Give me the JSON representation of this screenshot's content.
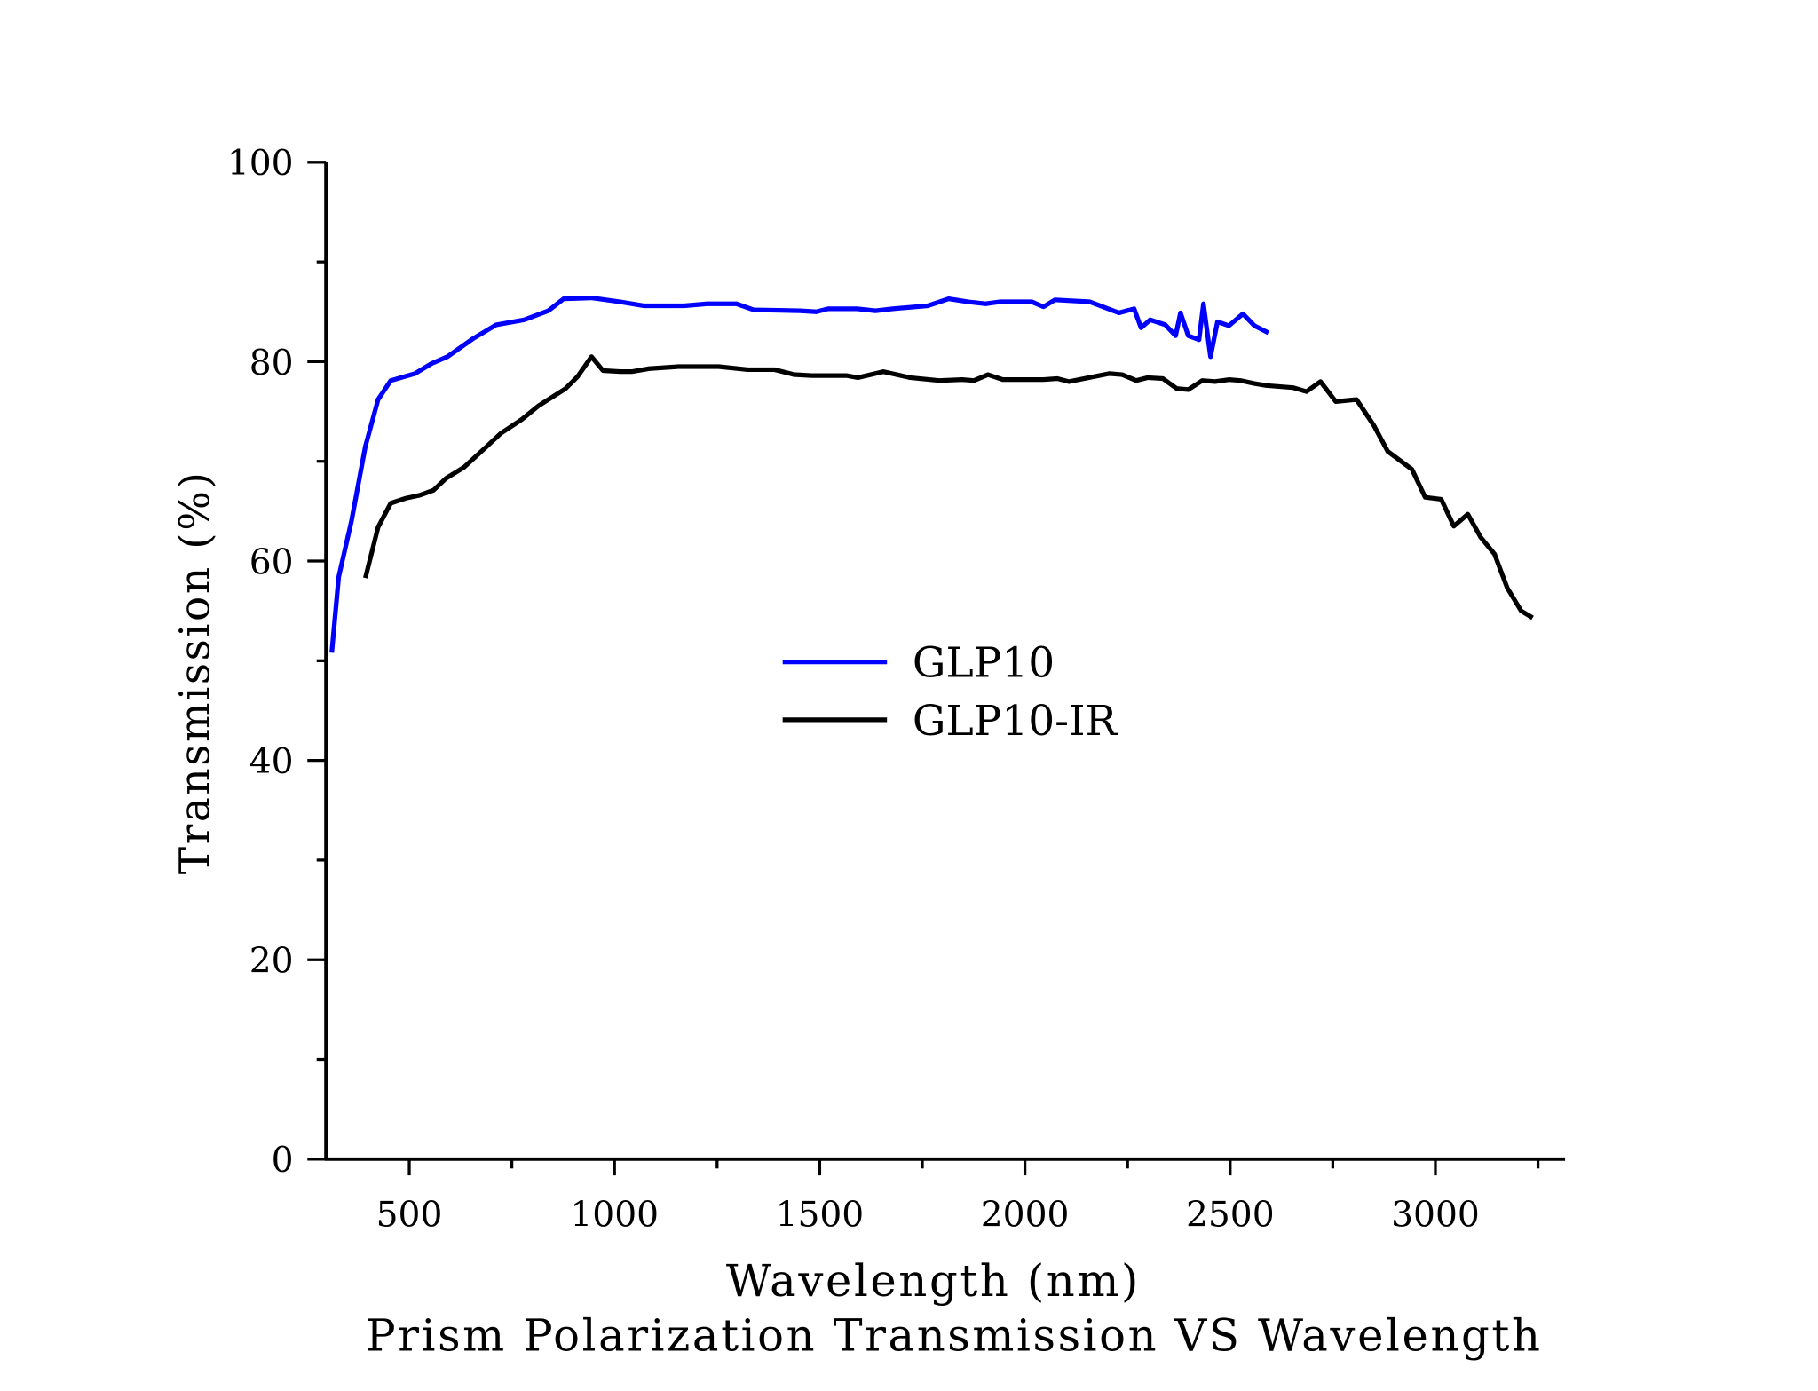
{
  "chart_data": {
    "type": "line",
    "title": "Prism Polarization Transmission VS Wavelength",
    "xlabel": "Wavelength (nm)",
    "ylabel": "Transmission (%)",
    "xlim": [
      297,
      3316
    ],
    "ylim": [
      0,
      100
    ],
    "xticks": [
      500,
      1000,
      1500,
      2000,
      2500,
      3000
    ],
    "xtick_labels": [
      "500",
      "1000",
      "1500",
      "2000",
      "2500",
      "3000"
    ],
    "yticks": [
      0,
      20,
      40,
      60,
      80,
      100
    ],
    "ytick_labels": [
      "0",
      "20",
      "40",
      "60",
      "80",
      "100"
    ],
    "grid": false,
    "legend_position": "center",
    "series": [
      {
        "name": "GLP10",
        "color": "#0000ff",
        "x": [
          311,
          328,
          359,
          393,
          424,
          455,
          514,
          554,
          593,
          655,
          712,
          780,
          839,
          876,
          944,
          1014,
          1071,
          1169,
          1226,
          1297,
          1339,
          1452,
          1492,
          1520,
          1591,
          1636,
          1678,
          1763,
          1814,
          1862,
          1904,
          1938,
          2017,
          2045,
          2073,
          2158,
          2229,
          2266,
          2283,
          2305,
          2342,
          2367,
          2379,
          2398,
          2424,
          2435,
          2452,
          2469,
          2497,
          2531,
          2559,
          2593
        ],
        "y": [
          50.8,
          58.4,
          64.0,
          71.5,
          76.2,
          78.1,
          78.8,
          79.8,
          80.5,
          82.3,
          83.7,
          84.2,
          85.1,
          86.3,
          86.4,
          86.0,
          85.6,
          85.6,
          85.8,
          85.8,
          85.2,
          85.1,
          85.0,
          85.3,
          85.3,
          85.1,
          85.3,
          85.6,
          86.3,
          86.0,
          85.8,
          86.0,
          86.0,
          85.5,
          86.2,
          86.0,
          84.9,
          85.3,
          83.4,
          84.2,
          83.7,
          82.6,
          84.9,
          82.6,
          82.2,
          85.8,
          80.5,
          84.0,
          83.6,
          84.8,
          83.6,
          82.9
        ]
      },
      {
        "name": "GLP10-IR",
        "color": "#000000",
        "x": [
          393,
          424,
          455,
          492,
          526,
          559,
          590,
          633,
          689,
          723,
          774,
          816,
          881,
          910,
          944,
          972,
          1014,
          1042,
          1085,
          1155,
          1254,
          1325,
          1390,
          1438,
          1480,
          1565,
          1593,
          1655,
          1720,
          1791,
          1847,
          1876,
          1910,
          1946,
          2045,
          2079,
          2107,
          2206,
          2237,
          2271,
          2299,
          2336,
          2370,
          2398,
          2432,
          2463,
          2497,
          2525,
          2559,
          2588,
          2653,
          2686,
          2720,
          2757,
          2808,
          2850,
          2884,
          2943,
          2975,
          3014,
          3045,
          3079,
          3110,
          3144,
          3175,
          3209,
          3237
        ],
        "y": [
          58.3,
          63.4,
          65.8,
          66.3,
          66.6,
          67.1,
          68.3,
          69.4,
          71.5,
          72.8,
          74.2,
          75.6,
          77.3,
          78.5,
          80.5,
          79.1,
          79.0,
          79.0,
          79.3,
          79.5,
          79.5,
          79.2,
          79.2,
          78.7,
          78.6,
          78.6,
          78.4,
          79.0,
          78.4,
          78.1,
          78.2,
          78.1,
          78.7,
          78.2,
          78.2,
          78.3,
          78.0,
          78.8,
          78.7,
          78.1,
          78.4,
          78.3,
          77.3,
          77.2,
          78.1,
          78.0,
          78.2,
          78.1,
          77.8,
          77.6,
          77.4,
          77.0,
          78.0,
          76.0,
          76.2,
          73.6,
          71.0,
          69.2,
          66.4,
          66.2,
          63.5,
          64.7,
          62.4,
          60.7,
          57.3,
          55.0,
          54.3
        ]
      }
    ]
  }
}
